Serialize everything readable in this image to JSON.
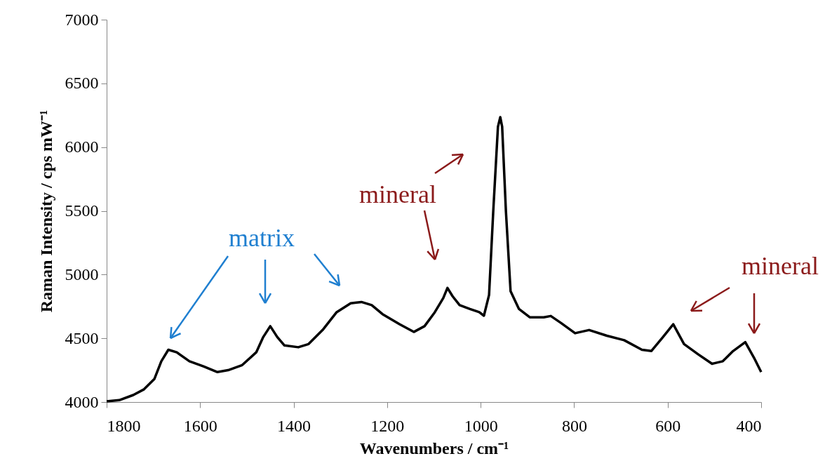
{
  "chart_data": {
    "type": "line",
    "xlabel": "Wavenumbers / cm⁻¹",
    "ylabel": "Raman Intensity / cps mW⁻¹",
    "x": [
      1800,
      1773,
      1743,
      1720,
      1698,
      1683,
      1668,
      1650,
      1623,
      1593,
      1563,
      1540,
      1510,
      1480,
      1465,
      1450,
      1435,
      1420,
      1390,
      1368,
      1338,
      1308,
      1278,
      1255,
      1233,
      1210,
      1173,
      1143,
      1120,
      1098,
      1080,
      1071,
      1060,
      1045,
      1023,
      1003,
      993,
      982,
      973,
      963,
      958,
      954,
      946,
      936,
      918,
      895,
      865,
      850,
      828,
      798,
      768,
      730,
      693,
      655,
      635,
      610,
      588,
      565,
      535,
      505,
      482,
      460,
      434,
      415,
      400
    ],
    "series": [
      {
        "color": "#000000",
        "values": [
          4005,
          4015,
          4055,
          4100,
          4180,
          4320,
          4410,
          4390,
          4320,
          4280,
          4235,
          4250,
          4290,
          4390,
          4510,
          4595,
          4510,
          4445,
          4430,
          4455,
          4565,
          4705,
          4775,
          4785,
          4760,
          4690,
          4610,
          4550,
          4595,
          4705,
          4815,
          4895,
          4830,
          4760,
          4730,
          4705,
          4677,
          4840,
          5500,
          6160,
          6235,
          6160,
          5500,
          4870,
          4730,
          4665,
          4665,
          4675,
          4620,
          4540,
          4565,
          4520,
          4485,
          4410,
          4400,
          4510,
          4610,
          4455,
          4375,
          4300,
          4320,
          4400,
          4470,
          4345,
          4235
        ]
      }
    ],
    "xlim": [
      1800,
      400
    ],
    "xticks": [
      1800,
      1600,
      1400,
      1200,
      1000,
      800,
      600,
      400
    ],
    "ylim": [
      4000,
      7000
    ],
    "yticks": [
      4000,
      4500,
      5000,
      5500,
      6000,
      6500,
      7000
    ],
    "grid": false,
    "marker": "none",
    "line_style": "solid",
    "annotations": [
      "matrix",
      "mineral",
      "mineral"
    ]
  }
}
